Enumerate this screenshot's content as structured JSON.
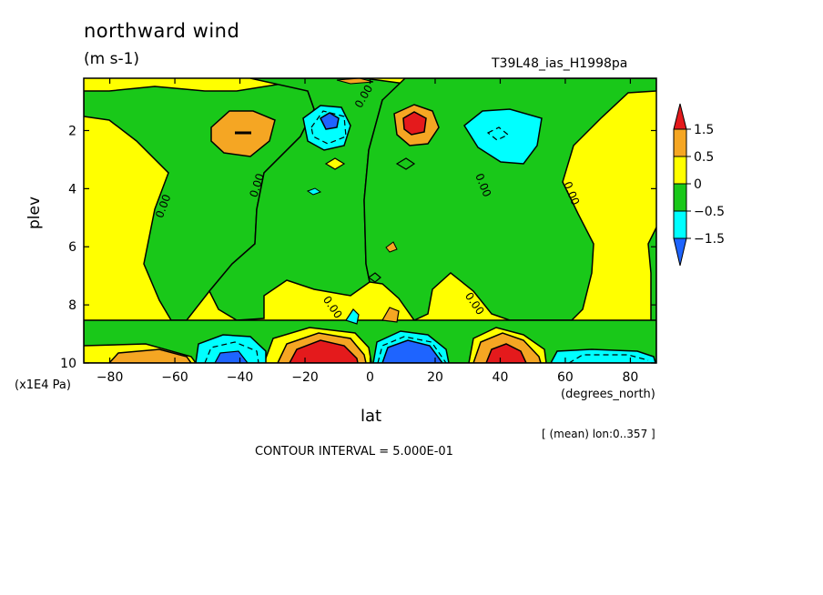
{
  "chart_data": {
    "type": "heatmap",
    "title": "northward wind",
    "units": "(m s-1)",
    "run_id": "T39L48_ias_H1998pa",
    "xlabel": "lat",
    "x_unit_label": "(degrees_north)",
    "ylabel": "plev",
    "y_unit_label": "(x1E4 Pa)",
    "subtitle": "[ (mean) lon:0..357 ]",
    "footer": "CONTOUR INTERVAL = 5.000E-01",
    "xlim": [
      -88,
      88
    ],
    "ylim": [
      10,
      0.2
    ],
    "x_ticks": [
      -80,
      -60,
      -40,
      -20,
      0,
      20,
      40,
      60,
      80
    ],
    "y_ticks": [
      2,
      4,
      6,
      8,
      10
    ],
    "contour_labels": [
      "0.00",
      "0.00",
      "0.00",
      "0.00",
      "0.00",
      "0.00",
      "0.00",
      "0.00",
      "0.00"
    ],
    "colorbar": {
      "labels": [
        "1.5",
        "0.5",
        "0",
        "-0.5",
        "-1.5"
      ],
      "bands": [
        {
          "range": "> 1.5",
          "color": "#e41a1c"
        },
        {
          "range": "0.5 to 1.5",
          "color": "#f5a623"
        },
        {
          "range": "0 to 0.5",
          "color": "#ffff00"
        },
        {
          "range": "-0.5 to 0",
          "color": "#19c819"
        },
        {
          "range": "-1.5 to -0.5",
          "color": "#00ffff"
        },
        {
          "range": "< -1.5",
          "color": "#1e64ff"
        }
      ]
    },
    "features": [
      {
        "lat": -40,
        "plev": 2.0,
        "value": 0.9,
        "sign": "positive"
      },
      {
        "lat": -13,
        "plev": 1.7,
        "value": -1.6,
        "sign": "negative"
      },
      {
        "lat": 13,
        "plev": 1.7,
        "value": 1.6,
        "sign": "positive"
      },
      {
        "lat": 43,
        "plev": 2.0,
        "value": -0.9,
        "sign": "negative"
      },
      {
        "lat": -70,
        "plev": 9.8,
        "value": 0.8,
        "sign": "positive"
      },
      {
        "lat": -45,
        "plev": 9.6,
        "value": -1.2,
        "sign": "negative"
      },
      {
        "lat": -15,
        "plev": 9.6,
        "value": 2.0,
        "sign": "positive"
      },
      {
        "lat": 15,
        "plev": 9.6,
        "value": -2.0,
        "sign": "negative"
      },
      {
        "lat": 43,
        "plev": 9.6,
        "value": 1.6,
        "sign": "positive"
      },
      {
        "lat": 68,
        "plev": 9.7,
        "value": -0.8,
        "sign": "negative"
      }
    ]
  }
}
